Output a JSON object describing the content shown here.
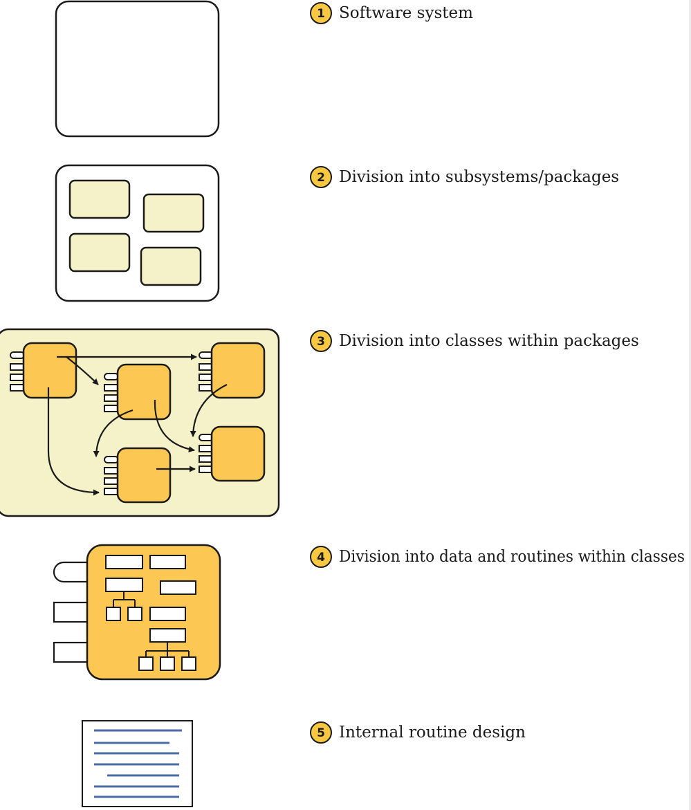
{
  "levels": [
    {
      "number": "1",
      "label": "Software system"
    },
    {
      "number": "2",
      "label": "Division into subsystems/packages"
    },
    {
      "number": "3",
      "label": "Division into classes within packages"
    },
    {
      "number": "4",
      "label": "Division into data and routines within classes"
    },
    {
      "number": "5",
      "label": "Internal routine design"
    }
  ],
  "colors": {
    "outline": "#1a1a1a",
    "pale_yellow": "#f5f2c9",
    "gold": "#fcc853",
    "badge": "#f9c843",
    "routine_lines": "#4a6ba8"
  }
}
